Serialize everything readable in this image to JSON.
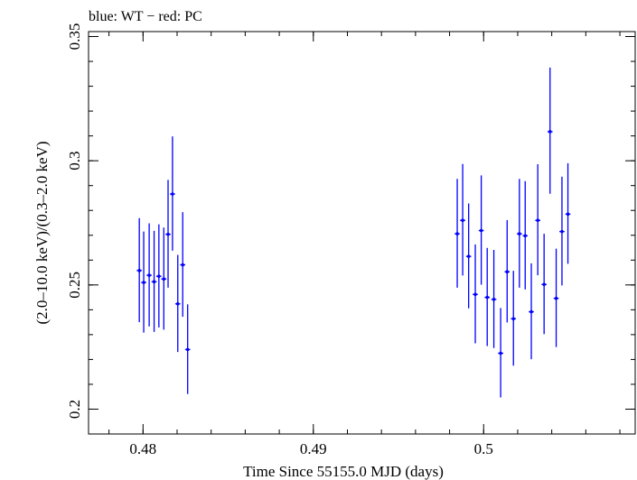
{
  "chart_data": {
    "type": "scatter",
    "title": "blue: WT − red: PC",
    "xlabel": "Time Since 55155.0 MJD (days)",
    "ylabel": "(2.0–10.0 keV)/(0.3–2.0 keV)",
    "xlim": [
      0.4768,
      0.5089
    ],
    "ylim": [
      0.19,
      0.352
    ],
    "xticks": [
      {
        "value": 0.48,
        "label": "0.48"
      },
      {
        "value": 0.49,
        "label": "0.49"
      },
      {
        "value": 0.5,
        "label": "0.5"
      }
    ],
    "yticks": [
      {
        "value": 0.2,
        "label": "0.2"
      },
      {
        "value": 0.25,
        "label": "0.25"
      },
      {
        "value": 0.3,
        "label": "0.3"
      },
      {
        "value": 0.35,
        "label": "0.35"
      }
    ],
    "x_minor_step": 0.002,
    "y_minor_step": 0.01,
    "grid": false,
    "series": [
      {
        "color": "#0000ff",
        "points": [
          {
            "x": 0.47978,
            "y": 0.2558,
            "yerr_low": 0.0208,
            "yerr_high": 0.0211,
            "xerr": 0.00015
          },
          {
            "x": 0.48004,
            "y": 0.251,
            "yerr_low": 0.0202,
            "yerr_high": 0.0205,
            "xerr": 0.00015
          },
          {
            "x": 0.48036,
            "y": 0.2539,
            "yerr_low": 0.0206,
            "yerr_high": 0.0209,
            "xerr": 0.00015
          },
          {
            "x": 0.48065,
            "y": 0.2513,
            "yerr_low": 0.0202,
            "yerr_high": 0.0205,
            "xerr": 0.00015
          },
          {
            "x": 0.48093,
            "y": 0.2535,
            "yerr_low": 0.0206,
            "yerr_high": 0.0209,
            "xerr": 0.00015
          },
          {
            "x": 0.48122,
            "y": 0.2524,
            "yerr_low": 0.0204,
            "yerr_high": 0.0207,
            "xerr": 0.00015
          },
          {
            "x": 0.48147,
            "y": 0.2704,
            "yerr_low": 0.0215,
            "yerr_high": 0.0219,
            "xerr": 0.00015
          },
          {
            "x": 0.48173,
            "y": 0.2866,
            "yerr_low": 0.0228,
            "yerr_high": 0.0232,
            "xerr": 0.00015
          },
          {
            "x": 0.48204,
            "y": 0.2424,
            "yerr_low": 0.0194,
            "yerr_high": 0.0197,
            "xerr": 0.00015
          },
          {
            "x": 0.48233,
            "y": 0.2581,
            "yerr_low": 0.0209,
            "yerr_high": 0.0212,
            "xerr": 0.00015
          },
          {
            "x": 0.48262,
            "y": 0.224,
            "yerr_low": 0.0179,
            "yerr_high": 0.0182,
            "xerr": 0.00015
          },
          {
            "x": 0.49845,
            "y": 0.2706,
            "yerr_low": 0.0217,
            "yerr_high": 0.0221,
            "xerr": 0.00015
          },
          {
            "x": 0.49877,
            "y": 0.276,
            "yerr_low": 0.0222,
            "yerr_high": 0.0227,
            "xerr": 0.00015
          },
          {
            "x": 0.49912,
            "y": 0.2615,
            "yerr_low": 0.0209,
            "yerr_high": 0.0213,
            "xerr": 0.00015
          },
          {
            "x": 0.49951,
            "y": 0.2462,
            "yerr_low": 0.0197,
            "yerr_high": 0.0201,
            "xerr": 0.00015
          },
          {
            "x": 0.49986,
            "y": 0.2719,
            "yerr_low": 0.0218,
            "yerr_high": 0.0222,
            "xerr": 0.00015
          },
          {
            "x": 0.50021,
            "y": 0.245,
            "yerr_low": 0.0196,
            "yerr_high": 0.0199,
            "xerr": 0.00015
          },
          {
            "x": 0.5006,
            "y": 0.2442,
            "yerr_low": 0.0196,
            "yerr_high": 0.0199,
            "xerr": 0.00015
          },
          {
            "x": 0.501,
            "y": 0.2225,
            "yerr_low": 0.0178,
            "yerr_high": 0.0182,
            "xerr": 0.00015
          },
          {
            "x": 0.50138,
            "y": 0.2553,
            "yerr_low": 0.0204,
            "yerr_high": 0.0208,
            "xerr": 0.00015
          },
          {
            "x": 0.50175,
            "y": 0.2364,
            "yerr_low": 0.0189,
            "yerr_high": 0.0193,
            "xerr": 0.00015
          },
          {
            "x": 0.5021,
            "y": 0.2706,
            "yerr_low": 0.0217,
            "yerr_high": 0.0221,
            "xerr": 0.00015
          },
          {
            "x": 0.50244,
            "y": 0.2698,
            "yerr_low": 0.0216,
            "yerr_high": 0.022,
            "xerr": 0.00015
          },
          {
            "x": 0.5028,
            "y": 0.2392,
            "yerr_low": 0.0191,
            "yerr_high": 0.0195,
            "xerr": 0.00015
          },
          {
            "x": 0.50318,
            "y": 0.276,
            "yerr_low": 0.0221,
            "yerr_high": 0.0226,
            "xerr": 0.00015
          },
          {
            "x": 0.50355,
            "y": 0.2502,
            "yerr_low": 0.02,
            "yerr_high": 0.0204,
            "xerr": 0.00015
          },
          {
            "x": 0.5039,
            "y": 0.3117,
            "yerr_low": 0.025,
            "yerr_high": 0.0258,
            "xerr": 0.00015
          },
          {
            "x": 0.50426,
            "y": 0.2446,
            "yerr_low": 0.0196,
            "yerr_high": 0.02,
            "xerr": 0.00015
          },
          {
            "x": 0.5046,
            "y": 0.2715,
            "yerr_low": 0.0217,
            "yerr_high": 0.0221,
            "xerr": 0.00015
          },
          {
            "x": 0.50495,
            "y": 0.2785,
            "yerr_low": 0.02,
            "yerr_high": 0.0205,
            "xerr": 0.00015
          }
        ]
      }
    ]
  }
}
